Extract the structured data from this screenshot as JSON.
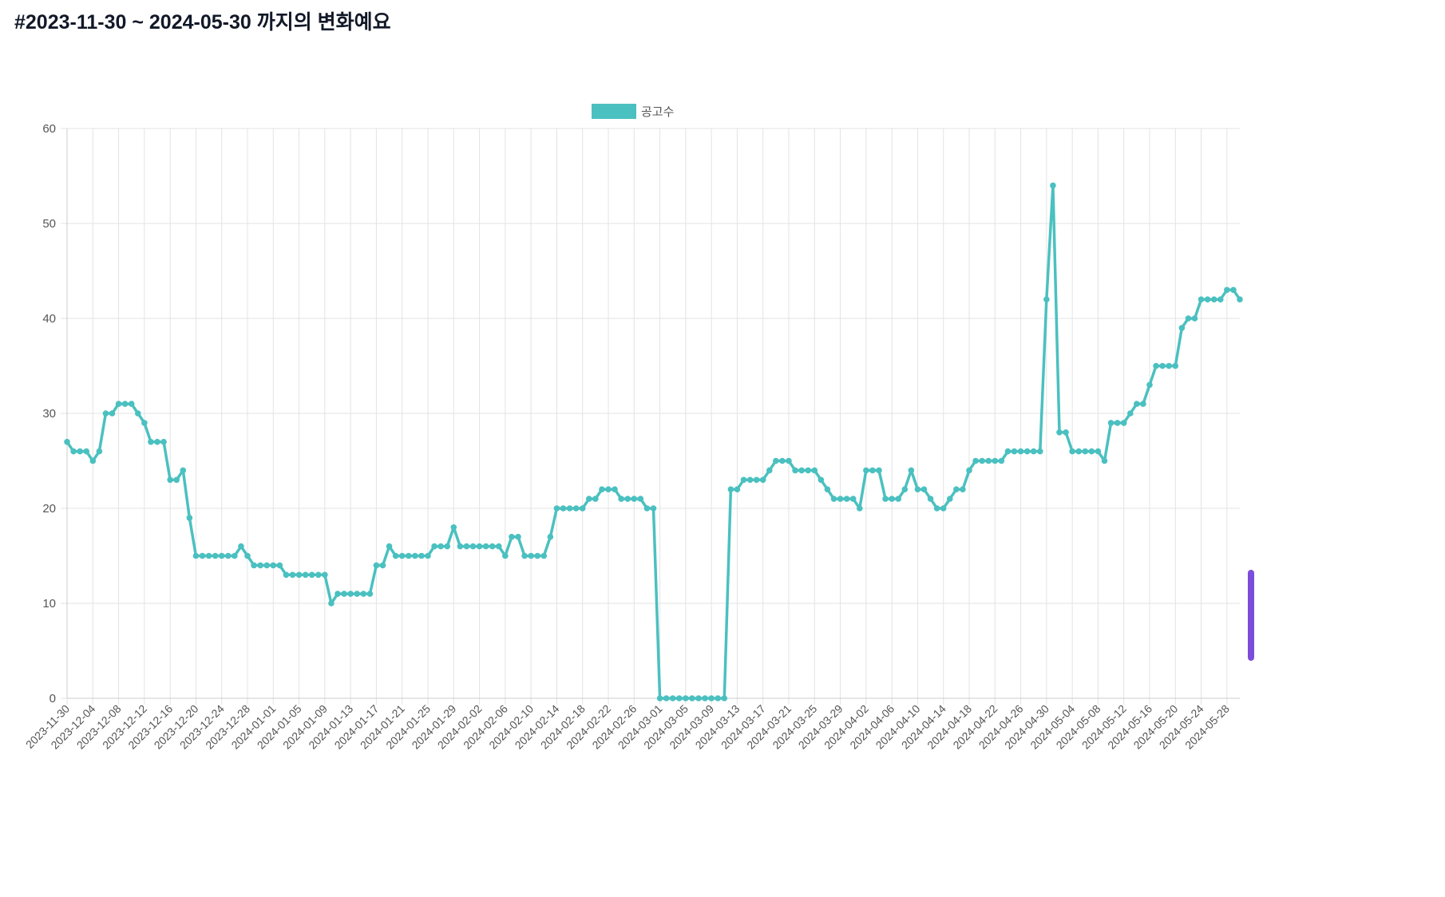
{
  "chart_data": {
    "type": "line",
    "title": "#2023-11-30 ~ 2024-05-30 까지의 변화예요",
    "categories": [
      "2023-11-30",
      null,
      null,
      null,
      "2023-12-04",
      null,
      null,
      null,
      "2023-12-08",
      null,
      null,
      null,
      "2023-12-12",
      null,
      null,
      null,
      "2023-12-16",
      null,
      null,
      null,
      "2023-12-20",
      null,
      null,
      null,
      "2023-12-24",
      null,
      null,
      null,
      "2023-12-28",
      null,
      null,
      null,
      "2024-01-01",
      null,
      null,
      null,
      "2024-01-05",
      null,
      null,
      null,
      "2024-01-09",
      null,
      null,
      null,
      "2024-01-13",
      null,
      null,
      null,
      "2024-01-17",
      null,
      null,
      null,
      "2024-01-21",
      null,
      null,
      null,
      "2024-01-25",
      null,
      null,
      null,
      "2024-01-29",
      null,
      null,
      null,
      "2024-02-02",
      null,
      null,
      null,
      "2024-02-06",
      null,
      null,
      null,
      "2024-02-10",
      null,
      null,
      null,
      "2024-02-14",
      null,
      null,
      null,
      "2024-02-18",
      null,
      null,
      null,
      "2024-02-22",
      null,
      null,
      null,
      "2024-02-26",
      null,
      null,
      null,
      "2024-03-01",
      null,
      null,
      null,
      "2024-03-05",
      null,
      null,
      null,
      "2024-03-09",
      null,
      null,
      null,
      "2024-03-13",
      null,
      null,
      null,
      "2024-03-17",
      null,
      null,
      null,
      "2024-03-21",
      null,
      null,
      null,
      "2024-03-25",
      null,
      null,
      null,
      "2024-03-29",
      null,
      null,
      null,
      "2024-04-02",
      null,
      null,
      null,
      "2024-04-06",
      null,
      null,
      null,
      "2024-04-10",
      null,
      null,
      null,
      "2024-04-14",
      null,
      null,
      null,
      "2024-04-18",
      null,
      null,
      null,
      "2024-04-22",
      null,
      null,
      null,
      "2024-04-26",
      null,
      null,
      null,
      "2024-04-30",
      null,
      null,
      null,
      "2024-05-04",
      null,
      null,
      null,
      "2024-05-08",
      null,
      null,
      null,
      "2024-05-12",
      null,
      null,
      null,
      "2024-05-16",
      null,
      null,
      null,
      "2024-05-20",
      null,
      null,
      null,
      "2024-05-24",
      null,
      null,
      null,
      "2024-05-28",
      null,
      null
    ],
    "series": [
      {
        "name": "공고수",
        "color": "#4bc0c0",
        "values": [
          27,
          26,
          26,
          26,
          25,
          26,
          30,
          30,
          31,
          31,
          31,
          30,
          29,
          27,
          27,
          27,
          23,
          23,
          24,
          19,
          15,
          15,
          15,
          15,
          15,
          15,
          15,
          16,
          15,
          14,
          14,
          14,
          14,
          14,
          13,
          13,
          13,
          13,
          13,
          13,
          13,
          10,
          11,
          11,
          11,
          11,
          11,
          11,
          14,
          14,
          16,
          15,
          15,
          15,
          15,
          15,
          15,
          16,
          16,
          16,
          18,
          16,
          16,
          16,
          16,
          16,
          16,
          16,
          15,
          17,
          17,
          15,
          15,
          15,
          15,
          17,
          20,
          20,
          20,
          20,
          20,
          21,
          21,
          22,
          22,
          22,
          21,
          21,
          21,
          21,
          20,
          20,
          0,
          0,
          0,
          0,
          0,
          0,
          0,
          0,
          0,
          0,
          0,
          22,
          22,
          23,
          23,
          23,
          23,
          24,
          25,
          25,
          25,
          24,
          24,
          24,
          24,
          23,
          22,
          21,
          21,
          21,
          21,
          20,
          24,
          24,
          24,
          21,
          21,
          21,
          22,
          24,
          22,
          22,
          21,
          20,
          20,
          21,
          22,
          22,
          24,
          25,
          25,
          25,
          25,
          25,
          26,
          26,
          26,
          26,
          26,
          26,
          42,
          54,
          28,
          28,
          26,
          26,
          26,
          26,
          26,
          25,
          29,
          29,
          29,
          30,
          31,
          31,
          33,
          35,
          35,
          35,
          35,
          39,
          40,
          40,
          42,
          42,
          42,
          42,
          43,
          43,
          42
        ]
      }
    ],
    "ylim": [
      0,
      60
    ],
    "yticks": [
      0,
      10,
      20,
      30,
      40,
      50,
      60
    ],
    "grid": true,
    "legend": "top"
  }
}
